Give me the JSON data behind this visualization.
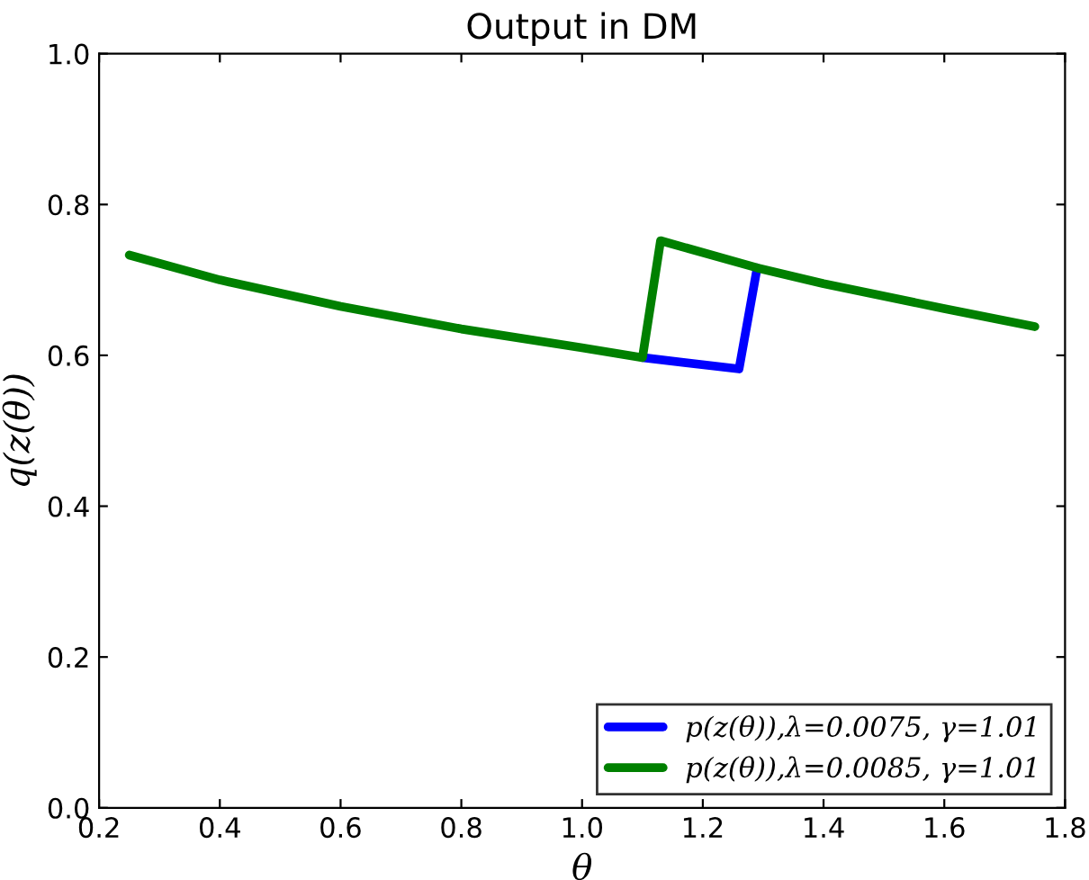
{
  "chart_data": {
    "type": "line",
    "title": "Output in DM",
    "xlabel": "θ",
    "ylabel": "q(z(θ))",
    "series": [
      {
        "name": "p(z(θ)),λ=0.0075, γ=1.01",
        "color": "#0000ff",
        "x": [
          1.1,
          1.26,
          1.29
        ],
        "values": [
          0.597,
          0.582,
          0.716
        ]
      },
      {
        "name": "p(z(θ)),λ=0.0085, γ=1.01",
        "color": "#008000",
        "x": [
          0.25,
          0.4,
          0.6,
          0.8,
          1.0,
          1.1,
          1.13,
          1.29,
          1.4,
          1.6,
          1.75
        ],
        "values": [
          0.733,
          0.7,
          0.665,
          0.635,
          0.61,
          0.597,
          0.752,
          0.716,
          0.695,
          0.662,
          0.638
        ]
      }
    ],
    "xlim": [
      0.2,
      1.8
    ],
    "ylim": [
      0,
      1
    ],
    "xticks": [
      0.2,
      0.4,
      0.6,
      0.8,
      {
        "value": 1,
        "label": "1.0"
      },
      1.2,
      1.4,
      1.6,
      1.8
    ],
    "yticks": [
      {
        "value": 0,
        "label": "0.0"
      },
      0.2,
      0.4,
      0.6,
      0.8,
      {
        "value": 1,
        "label": "1.0"
      }
    ],
    "legend": "bottom right",
    "grid": false,
    "line_style": "solid",
    "marker": "none"
  }
}
